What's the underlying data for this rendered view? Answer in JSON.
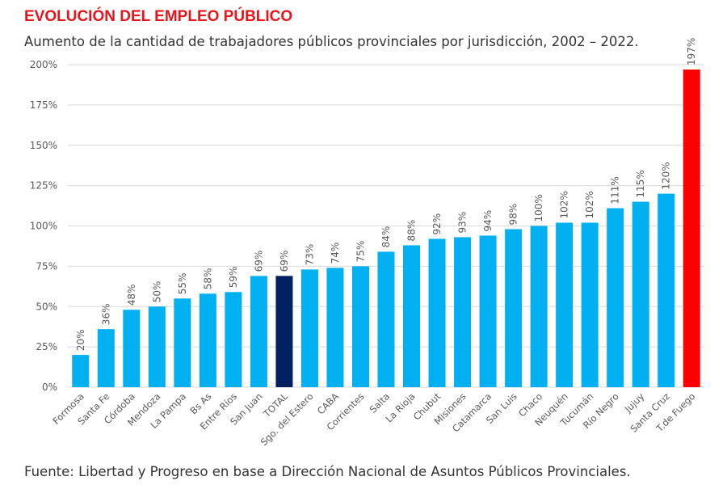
{
  "chart_data": {
    "type": "bar",
    "title": "EVOLUCIÓN DEL EMPLEO PÚBLICO",
    "subtitle": "Aumento de la cantidad de trabajadores públicos provinciales por jurisdicción, 2002 – 2022.",
    "source": "Fuente: Libertad y Progreso en base a Dirección Nacional de Asuntos Públicos Provinciales.",
    "categories": [
      "Formosa",
      "Santa Fe",
      "Córdoba",
      "Mendoza",
      "La Pampa",
      "Bs As",
      "Entre Ríos",
      "San Juan",
      "TOTAL",
      "Sgo. del Estero",
      "CABA",
      "Corrientes",
      "Salta",
      "La Rioja",
      "Chubut",
      "Misiones",
      "Catamarca",
      "San Luis",
      "Chaco",
      "Neuquén",
      "Tucumán",
      "Río Negro",
      "Jujuy",
      "Santa Cruz",
      "T.de Fuego"
    ],
    "values": [
      20,
      36,
      48,
      50,
      55,
      58,
      59,
      69,
      69,
      73,
      74,
      75,
      84,
      88,
      92,
      93,
      94,
      98,
      100,
      102,
      102,
      111,
      115,
      120,
      197
    ],
    "data_labels": [
      "20%",
      "36%",
      "48%",
      "50%",
      "55%",
      "58%",
      "59%",
      "69%",
      "69%",
      "73%",
      "74%",
      "75%",
      "84%",
      "88%",
      "92%",
      "93%",
      "94%",
      "98%",
      "100%",
      "102%",
      "102%",
      "111%",
      "115%",
      "120%",
      "197%"
    ],
    "ylim": [
      0,
      200
    ],
    "yticks": [
      0,
      25,
      50,
      75,
      100,
      125,
      150,
      175,
      200
    ],
    "ytick_labels": [
      "0%",
      "25%",
      "50%",
      "75%",
      "100%",
      "125%",
      "150%",
      "175%",
      "200%"
    ],
    "grid": true,
    "colors": {
      "default": "#00b0f0",
      "TOTAL": "#002060",
      "T.de Fuego": "#ff0000"
    }
  }
}
